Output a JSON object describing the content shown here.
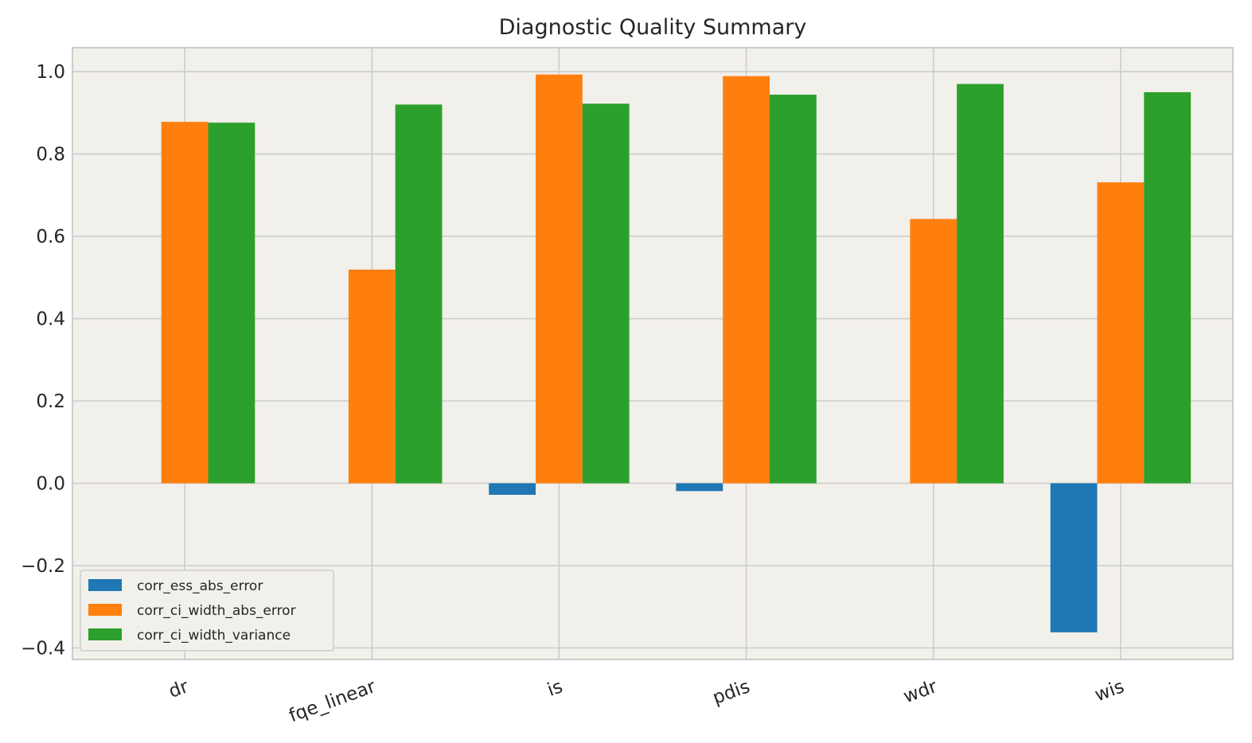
{
  "chart_data": {
    "type": "bar",
    "title": "Diagnostic Quality Summary",
    "xlabel": "",
    "ylabel": "",
    "categories": [
      "dr",
      "fqe_linear",
      "is",
      "pdis",
      "wdr",
      "wis"
    ],
    "series": [
      {
        "name": "corr_ess_abs_error",
        "color": "#1f77b4",
        "values": [
          null,
          null,
          -0.028,
          -0.019,
          null,
          -0.362
        ]
      },
      {
        "name": "corr_ci_width_abs_error",
        "color": "#ff7f0e",
        "values": [
          0.878,
          0.519,
          0.993,
          0.989,
          0.642,
          0.731
        ]
      },
      {
        "name": "corr_ci_width_variance",
        "color": "#2ca02c",
        "values": [
          0.876,
          0.92,
          0.922,
          0.944,
          0.97,
          0.95
        ]
      }
    ],
    "ylim": [
      -0.428,
      1.058
    ],
    "yticks": [
      -0.4,
      -0.2,
      0.0,
      0.2,
      0.4,
      0.6,
      0.8,
      1.0
    ],
    "ytick_labels": [
      "−0.4",
      "−0.2",
      "0.0",
      "0.2",
      "0.4",
      "0.6",
      "0.8",
      "1.0"
    ],
    "grid": true,
    "legend_position": "lower-left",
    "background_color": "#f2f0ea",
    "grid_color": "#cccccc"
  }
}
